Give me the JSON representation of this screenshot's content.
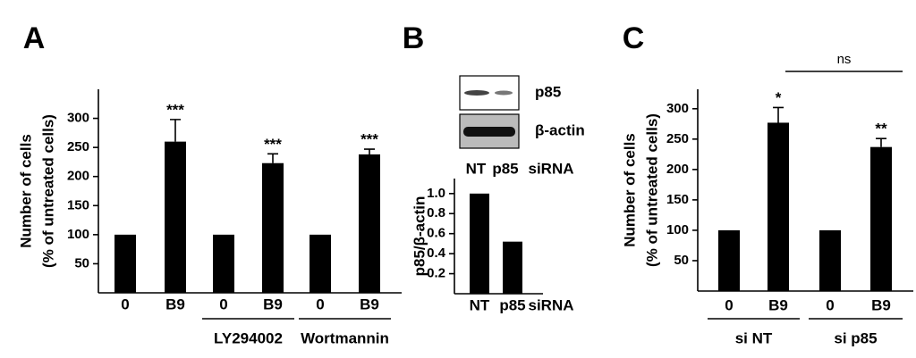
{
  "chart_data": [
    {
      "type": "bar",
      "panel": "A",
      "ylabel": "Number of cells",
      "ylabel2": "(% of untreated cells)",
      "categories": [
        "0",
        "B9",
        "0",
        "B9",
        "0",
        "B9"
      ],
      "values": [
        100,
        260,
        100,
        223,
        100,
        238
      ],
      "errors": [
        null,
        38,
        null,
        16,
        null,
        9
      ],
      "annotations": [
        null,
        "***",
        null,
        "***",
        null,
        "***"
      ],
      "groups": [
        {
          "label": "LY294002",
          "span": [
            2,
            3
          ]
        },
        {
          "label": "Wortmannin",
          "span": [
            4,
            5
          ]
        }
      ],
      "color": "#000000",
      "ylim": [
        0,
        350
      ],
      "yticks": [
        50,
        100,
        150,
        200,
        250,
        300
      ]
    },
    {
      "type": "bar",
      "panel": "B",
      "ylabel": "p85/β-actin",
      "blot_labels": [
        "p85",
        "β-actin"
      ],
      "xlabel": "siRNA",
      "categories": [
        "NT",
        "p85"
      ],
      "values": [
        1.0,
        0.52
      ],
      "color": "#000000",
      "ylim": [
        0,
        1.15
      ],
      "yticks": [
        {
          "value": 0.2,
          "label": "0.2"
        },
        {
          "value": 0.4,
          "label": "0.4"
        },
        {
          "value": 0.6,
          "label": "0.6"
        },
        {
          "value": 0.8,
          "label": "0.8"
        },
        {
          "value": 1.0,
          "label": "1.0"
        }
      ]
    },
    {
      "type": "bar",
      "panel": "C",
      "ylabel": "Number of cells",
      "ylabel2": "(% of untreated cells)",
      "categories": [
        "0",
        "B9",
        "0",
        "B9"
      ],
      "values": [
        100,
        277,
        100,
        237
      ],
      "errors": [
        null,
        25,
        null,
        14
      ],
      "annotations": [
        null,
        "*",
        null,
        "**"
      ],
      "comparison": {
        "label": "ns",
        "between": [
          1,
          3
        ]
      },
      "groups": [
        {
          "label": "si NT",
          "span": [
            0,
            1
          ]
        },
        {
          "label": "si p85",
          "span": [
            2,
            3
          ]
        }
      ],
      "color": "#000000",
      "ylim": [
        0,
        332
      ],
      "yticks": [
        50,
        100,
        150,
        200,
        250,
        300
      ]
    }
  ]
}
